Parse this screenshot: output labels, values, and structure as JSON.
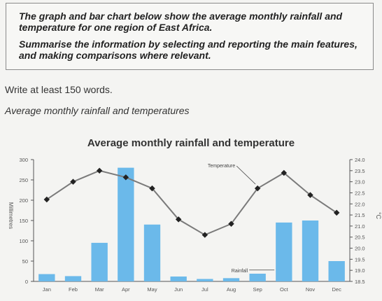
{
  "task": {
    "prompt_line1": "The graph and bar chart below show the average monthly rainfall and temperature for one region of East Africa.",
    "prompt_line2": "Summarise the information by selecting and reporting the main features, and making comparisons where relevant."
  },
  "instruction": "Write at least 150 words.",
  "figure_caption": "Average monthly rainfall and temperatures",
  "colors": {
    "bar": "#6bb9ea",
    "line": "#7a7a7a",
    "marker": "#222222",
    "axis": "#555555"
  },
  "chart_data": {
    "type": "bar+line",
    "title": "Average monthly rainfall and temperature",
    "categories": [
      "Jan",
      "Feb",
      "Mar",
      "Apr",
      "May",
      "Jun",
      "Jul",
      "Aug",
      "Sep",
      "Oct",
      "Nov",
      "Dec"
    ],
    "series": [
      {
        "name": "Rainfall",
        "type": "bar",
        "axis": "left",
        "values": [
          18,
          13,
          95,
          280,
          140,
          12,
          6,
          8,
          19,
          145,
          150,
          50
        ]
      },
      {
        "name": "Temperature",
        "type": "line",
        "axis": "right",
        "values": [
          22.2,
          23.0,
          23.5,
          23.2,
          22.7,
          21.3,
          20.6,
          21.1,
          22.7,
          23.4,
          22.4,
          21.6
        ]
      }
    ],
    "ylabel": "Millimetres",
    "ylabel_right": "°C",
    "ylim": [
      0,
      300
    ],
    "ylim_right": [
      18.5,
      24.0
    ],
    "yticks": [
      0,
      50,
      100,
      150,
      200,
      250,
      300
    ],
    "yticks_right": [
      "18.5",
      "19.0",
      "19.5",
      "20.0",
      "20.5",
      "21.0",
      "21.5",
      "22.0",
      "22.5",
      "23.0",
      "23.5",
      "24.0"
    ],
    "annotations": [
      {
        "text": "Temperature",
        "series": "Temperature",
        "category": "Sep"
      },
      {
        "text": "Rainfall",
        "series": "Rainfall",
        "category": "Oct"
      }
    ],
    "grid": false,
    "legend": "none"
  }
}
